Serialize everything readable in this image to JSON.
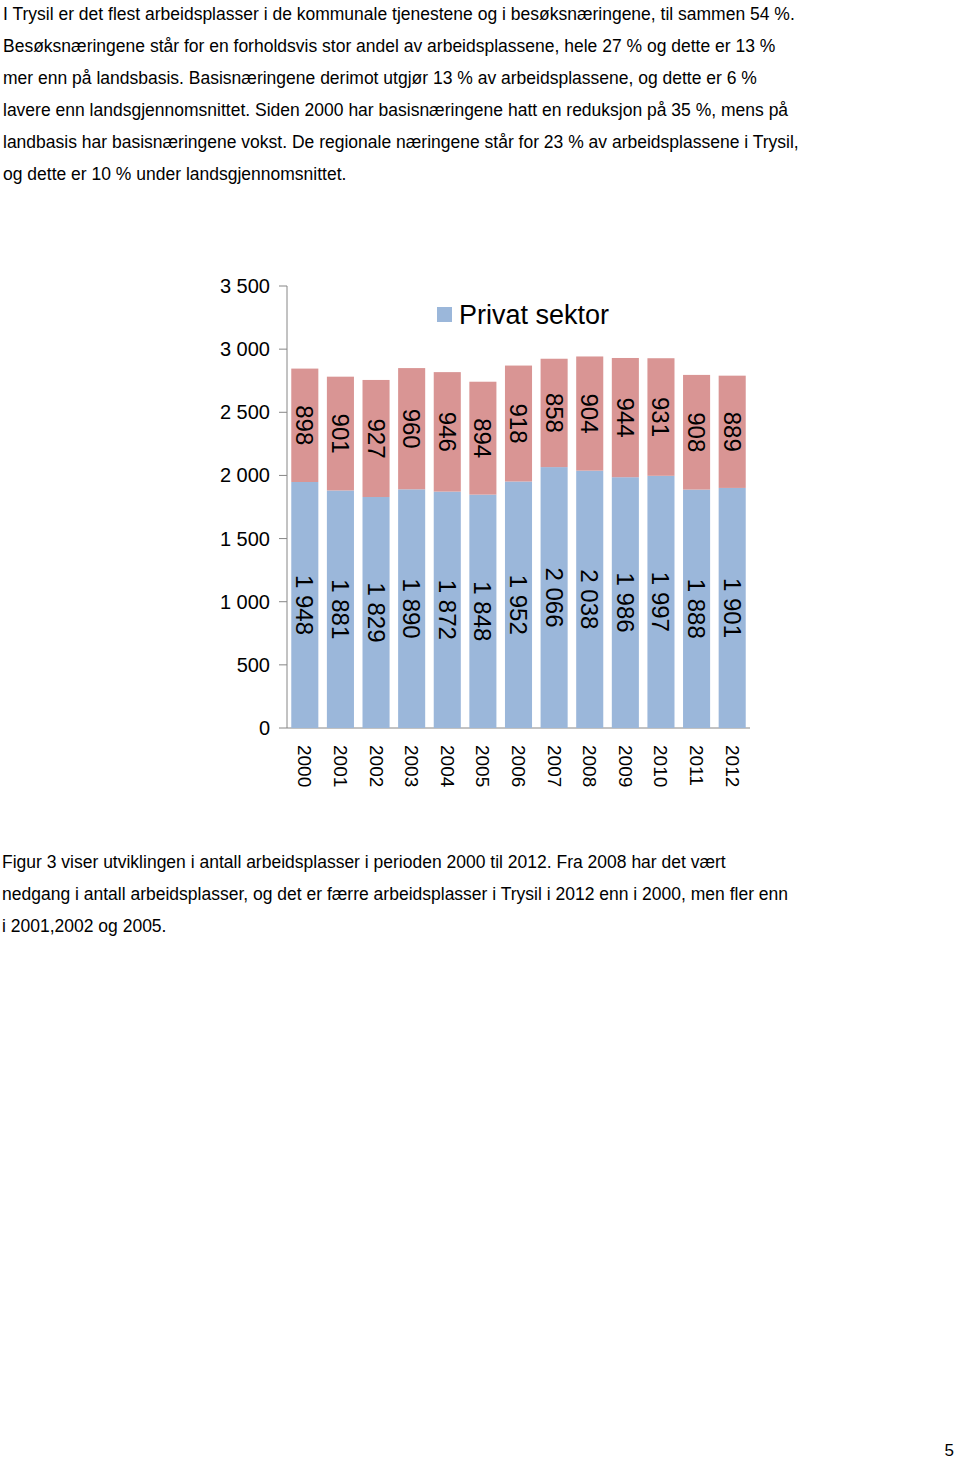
{
  "intro_lines": [
    "I Trysil er det flest arbeidsplasser i de kommunale tjenestene og i besøksnæringene, til sammen 54 %.",
    "Besøksnæringene står for en forholdsvis stor andel av arbeidsplassene,  hele 27 % og dette er 13 %",
    "mer enn på landsbasis. Basisnæringene derimot utgjør 13 % av arbeidsplassene, og dette er 6 %",
    "lavere enn landsgjennomsnittet. Siden 2000 har basisnæringene hatt en reduksjon på 35 %, mens på",
    "landbasis har basisnæringene vokst. De regionale næringene står for 23 % av arbeidsplassene i Trysil,",
    "og dette er 10 % under landsgjennomsnittet."
  ],
  "chart_data": {
    "type": "bar",
    "stacked": true,
    "data_labels": true,
    "grid": false,
    "legend": "top",
    "categories": [
      "2000",
      "2001",
      "2002",
      "2003",
      "2004",
      "2005",
      "2006",
      "2007",
      "2008",
      "2009",
      "2010",
      "2011",
      "2012"
    ],
    "series": [
      {
        "name": "Privat sektor",
        "color": "#9bb7da",
        "values": [
          1948,
          1881,
          1829,
          1890,
          1872,
          1848,
          1952,
          2066,
          2038,
          1986,
          1997,
          1888,
          1901
        ],
        "value_labels": [
          "1 948",
          "1 881",
          "1 829",
          "1 890",
          "1 872",
          "1 848",
          "1 952",
          "2 066",
          "2 038",
          "1 986",
          "1 997",
          "1 888",
          "1 901"
        ]
      },
      {
        "name": null,
        "color": "#d99594",
        "values": [
          898,
          901,
          927,
          960,
          946,
          894,
          918,
          858,
          904,
          944,
          931,
          908,
          889
        ]
      }
    ],
    "ylim": [
      0,
      3500
    ],
    "yticks": [
      0,
      500,
      {
        "value": 1000,
        "label": "1 000"
      },
      {
        "value": 1500,
        "label": "1 500"
      },
      {
        "value": 2000,
        "label": "2 000"
      },
      {
        "value": 2500,
        "label": "2 500"
      },
      {
        "value": 3000,
        "label": "3 000"
      },
      {
        "value": 3500,
        "label": "3 500"
      }
    ]
  },
  "caption_lines": [
    "Figur 3 viser utviklingen i antall arbeidsplasser i perioden 2000 til 2012. Fra 2008 har det vært",
    "nedgang i antall arbeidsplasser, og det er færre arbeidsplasser i Trysil i 2012 enn i 2000, men fler enn",
    "i 2001,2002 og 2005."
  ],
  "page_number": 5
}
